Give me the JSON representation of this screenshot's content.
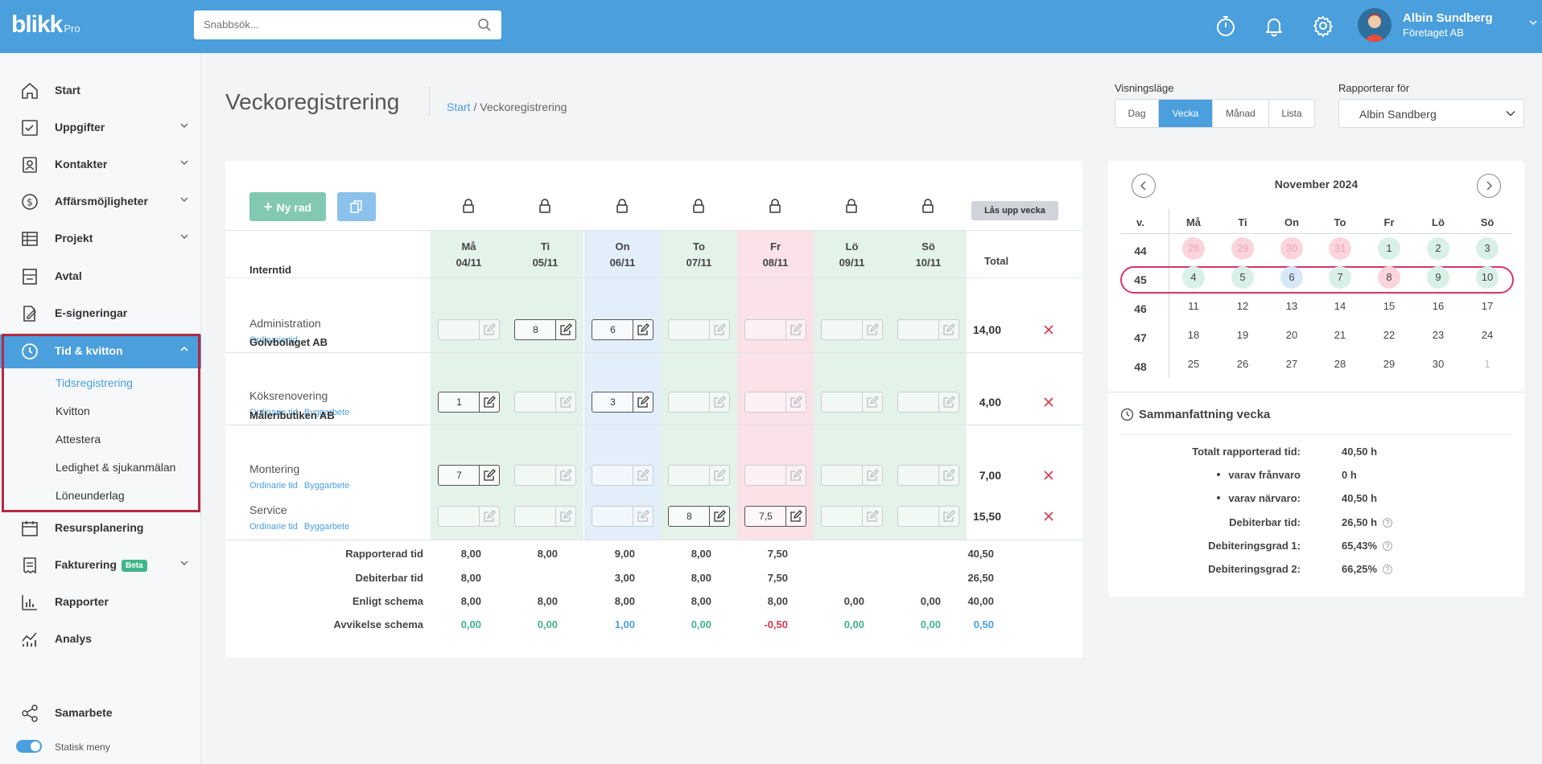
{
  "app": {
    "logo": "blikk",
    "logo_suffix": "Pro"
  },
  "search": {
    "placeholder": "Snabbsök..."
  },
  "user": {
    "name": "Albin Sundberg",
    "company": "Företaget AB"
  },
  "sidebar": {
    "items": [
      {
        "label": "Start",
        "icon": "home-icon"
      },
      {
        "label": "Uppgifter",
        "icon": "checkbox-icon"
      },
      {
        "label": "Kontakter",
        "icon": "contact-icon"
      },
      {
        "label": "Affärsmöjligheter",
        "icon": "dollar-icon"
      },
      {
        "label": "Projekt",
        "icon": "table-icon"
      },
      {
        "label": "Avtal",
        "icon": "contract-icon"
      },
      {
        "label": "E-signeringar",
        "icon": "sign-icon"
      },
      {
        "label": "Tid & kvitton",
        "icon": "clock-icon"
      },
      {
        "label": "Resursplanering",
        "icon": "calendar-icon"
      },
      {
        "label": "Fakturering",
        "icon": "invoice-icon"
      },
      {
        "label": "Rapporter",
        "icon": "bar-chart-icon"
      },
      {
        "label": "Analys",
        "icon": "analytics-icon"
      },
      {
        "label": "Samarbete",
        "icon": "share-icon"
      }
    ],
    "sub_items": [
      "Tidsregistrering",
      "Kvitton",
      "Attestera",
      "Ledighet & sjukanmälan",
      "Löneunderlag"
    ],
    "beta_badge": "Beta",
    "static_menu_label": "Statisk meny"
  },
  "page": {
    "title": "Veckoregistrering",
    "breadcrumb_home": "Start",
    "breadcrumb_sep": " / ",
    "breadcrumb_current": "Veckoregistrering"
  },
  "view_mode": {
    "label": "Visningsläge",
    "options": [
      "Dag",
      "Vecka",
      "Månad",
      "Lista"
    ],
    "selected": "Vecka"
  },
  "reporter": {
    "label": "Rapporterar för",
    "selected": "Albin Sandberg"
  },
  "toolbar": {
    "new_row_label": "Ny rad",
    "unlock_week_label": "Lås upp vecka"
  },
  "days": [
    {
      "name": "Må",
      "date": "04/11",
      "color": "#e4f3ea"
    },
    {
      "name": "Ti",
      "date": "05/11",
      "color": "#e4f3ea"
    },
    {
      "name": "On",
      "date": "06/11",
      "color": "#e2eef9"
    },
    {
      "name": "To",
      "date": "07/11",
      "color": "#e4f3ea"
    },
    {
      "name": "Fr",
      "date": "08/11",
      "color": "#fbe1e8"
    },
    {
      "name": "Lö",
      "date": "09/11",
      "color": "#e4f3ea"
    },
    {
      "name": "Sö",
      "date": "10/11",
      "color": "#e4f3ea"
    }
  ],
  "total_label": "Total",
  "groups": [
    {
      "name": "Interntid",
      "rows": [
        {
          "name": "Administration",
          "tags": [
            "Ordinarie tid"
          ],
          "values": [
            "",
            "8",
            "6",
            "",
            "",
            "",
            ""
          ],
          "total": "14,00"
        }
      ]
    },
    {
      "name": "Golvbolaget AB",
      "rows": [
        {
          "name": "Köksrenovering",
          "tags": [
            "Ordinarie tid",
            "Byggarbete"
          ],
          "values": [
            "1",
            "",
            "3",
            "",
            "",
            "",
            ""
          ],
          "total": "4,00"
        }
      ]
    },
    {
      "name": "Måleributiken AB",
      "rows": [
        {
          "name": "Montering",
          "tags": [
            "Ordinarie tid",
            "Byggarbete"
          ],
          "values": [
            "7",
            "",
            "",
            "",
            "",
            "",
            ""
          ],
          "total": "7,00"
        },
        {
          "name": "Service",
          "tags": [
            "Ordinarie tid",
            "Byggarbete"
          ],
          "values": [
            "",
            "",
            "",
            "8",
            "7,5",
            "",
            ""
          ],
          "total": "15,50"
        }
      ]
    }
  ],
  "summary_rows": [
    {
      "label": "Rapporterad tid",
      "values": [
        "8,00",
        "8,00",
        "9,00",
        "8,00",
        "7,50",
        "",
        ""
      ],
      "total": "40,50",
      "style": [
        "",
        "",
        "",
        "",
        "",
        "",
        ""
      ],
      "total_style": ""
    },
    {
      "label": "Debiterbar tid",
      "values": [
        "8,00",
        "",
        "3,00",
        "8,00",
        "7,50",
        "",
        ""
      ],
      "total": "26,50",
      "style": [
        "",
        "",
        "",
        "",
        "",
        "",
        ""
      ],
      "total_style": ""
    },
    {
      "label": "Enligt schema",
      "values": [
        "8,00",
        "8,00",
        "8,00",
        "8,00",
        "8,00",
        "0,00",
        "0,00"
      ],
      "total": "40,00",
      "style": [
        "",
        "",
        "",
        "",
        "",
        "",
        ""
      ],
      "total_style": ""
    },
    {
      "label": "Avvikelse schema",
      "values": [
        "0,00",
        "0,00",
        "1,00",
        "0,00",
        "-0,50",
        "0,00",
        "0,00"
      ],
      "total": "0,50",
      "style": [
        "g",
        "g",
        "b",
        "g",
        "r",
        "g",
        "g"
      ],
      "total_style": "b"
    }
  ],
  "calendar": {
    "month": "November 2024",
    "week_header": "v.",
    "weekdays": [
      "Må",
      "Ti",
      "On",
      "To",
      "Fr",
      "Lö",
      "Sö"
    ],
    "weeks": [
      {
        "week": "44",
        "days": [
          {
            "d": "28",
            "s": "r prev"
          },
          {
            "d": "29",
            "s": "r prev"
          },
          {
            "d": "30",
            "s": "r prev"
          },
          {
            "d": "31",
            "s": "r prev"
          },
          {
            "d": "1",
            "s": "g"
          },
          {
            "d": "2",
            "s": "g"
          },
          {
            "d": "3",
            "s": "g"
          }
        ]
      },
      {
        "week": "45",
        "days": [
          {
            "d": "4",
            "s": "g"
          },
          {
            "d": "5",
            "s": "g"
          },
          {
            "d": "6",
            "s": "b"
          },
          {
            "d": "7",
            "s": "g"
          },
          {
            "d": "8",
            "s": "r"
          },
          {
            "d": "9",
            "s": "g"
          },
          {
            "d": "10",
            "s": "g"
          }
        ]
      },
      {
        "week": "46",
        "days": [
          {
            "d": "11",
            "s": ""
          },
          {
            "d": "12",
            "s": ""
          },
          {
            "d": "13",
            "s": ""
          },
          {
            "d": "14",
            "s": ""
          },
          {
            "d": "15",
            "s": ""
          },
          {
            "d": "16",
            "s": ""
          },
          {
            "d": "17",
            "s": ""
          }
        ]
      },
      {
        "week": "47",
        "days": [
          {
            "d": "18",
            "s": ""
          },
          {
            "d": "19",
            "s": ""
          },
          {
            "d": "20",
            "s": ""
          },
          {
            "d": "21",
            "s": ""
          },
          {
            "d": "22",
            "s": ""
          },
          {
            "d": "23",
            "s": ""
          },
          {
            "d": "24",
            "s": ""
          }
        ]
      },
      {
        "week": "48",
        "days": [
          {
            "d": "25",
            "s": ""
          },
          {
            "d": "26",
            "s": ""
          },
          {
            "d": "27",
            "s": ""
          },
          {
            "d": "28",
            "s": ""
          },
          {
            "d": "29",
            "s": ""
          },
          {
            "d": "30",
            "s": ""
          },
          {
            "d": "1",
            "s": "next"
          }
        ]
      }
    ],
    "selected_week": "45"
  },
  "week_summary": {
    "title": "Sammanfattning vecka",
    "rows": [
      {
        "label": "Totalt rapporterad tid:",
        "value": "40,50 h",
        "bullet": false,
        "help": false
      },
      {
        "label": "varav frånvaro",
        "value": "0 h",
        "bullet": true,
        "help": false
      },
      {
        "label": "varav närvaro:",
        "value": "40,50 h",
        "bullet": true,
        "help": false
      },
      {
        "label": "Debiterbar tid:",
        "value": "26,50 h",
        "bullet": false,
        "help": true
      },
      {
        "label": "Debiteringsgrad 1:",
        "value": "65,43%",
        "bullet": false,
        "help": true
      },
      {
        "label": "Debiteringsgrad 2:",
        "value": "66,25%",
        "bullet": false,
        "help": true
      }
    ],
    "help_glyph": "?"
  },
  "colors": {
    "primary": "#4a9fdc",
    "green": "#3fb58a",
    "red": "#d0394e",
    "highlight_border": "#b52a42"
  }
}
